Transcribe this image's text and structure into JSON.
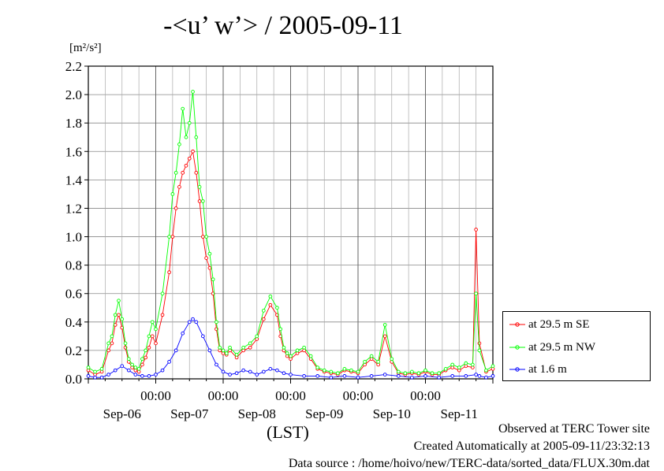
{
  "title": "-<u’ w’> / 2005-09-11",
  "ylabel_unit": "[m²/s²]",
  "xlabel": "(LST)",
  "footer": {
    "observed": "Observed at TERC Tower site",
    "created": "Created Automatically at 2005-09-11/23:32:13",
    "source": "Data source : /home/hoivo/new/TERC-data/sorted_data/FLUX.30m.dat"
  },
  "chart_data": {
    "type": "line",
    "title": "-<u’ w’> / 2005-09-11",
    "xlabel": "(LST)",
    "ylabel": "[m²/s²]",
    "xlim_days": [
      0,
      6
    ],
    "ylim": [
      0,
      2.2
    ],
    "yticks": [
      "0.0",
      "0.2",
      "0.4",
      "0.6",
      "0.8",
      "1.0",
      "1.2",
      "1.4",
      "1.6",
      "1.8",
      "2.0",
      "2.2"
    ],
    "xtick_time_labels": [
      "00:00",
      "00:00",
      "00:00",
      "00:00",
      "00:00"
    ],
    "xtick_day_labels": [
      "Sep-06",
      "Sep-07",
      "Sep-08",
      "Sep-09",
      "Sep-10",
      "Sep-11"
    ],
    "grid": true,
    "legend_position": "right",
    "series": [
      {
        "name": "at 29.5 m SE",
        "color": "#ff0000",
        "x": [
          0.0,
          0.1,
          0.2,
          0.3,
          0.35,
          0.4,
          0.45,
          0.5,
          0.55,
          0.6,
          0.65,
          0.7,
          0.75,
          0.8,
          0.85,
          0.9,
          0.95,
          1.0,
          1.1,
          1.2,
          1.25,
          1.3,
          1.35,
          1.4,
          1.45,
          1.5,
          1.55,
          1.6,
          1.65,
          1.7,
          1.75,
          1.8,
          1.85,
          1.9,
          1.95,
          2.0,
          2.05,
          2.1,
          2.2,
          2.3,
          2.4,
          2.5,
          2.6,
          2.7,
          2.8,
          2.85,
          2.9,
          2.95,
          3.0,
          3.1,
          3.2,
          3.3,
          3.4,
          3.5,
          3.6,
          3.7,
          3.8,
          3.9,
          4.0,
          4.1,
          4.2,
          4.3,
          4.4,
          4.5,
          4.6,
          4.7,
          4.8,
          4.9,
          5.0,
          5.1,
          5.2,
          5.3,
          5.4,
          5.5,
          5.6,
          5.7,
          5.75,
          5.8,
          5.9,
          6.0
        ],
        "values": [
          0.06,
          0.03,
          0.05,
          0.2,
          0.25,
          0.38,
          0.45,
          0.36,
          0.22,
          0.12,
          0.08,
          0.06,
          0.05,
          0.1,
          0.15,
          0.22,
          0.3,
          0.25,
          0.45,
          0.75,
          1.0,
          1.2,
          1.35,
          1.45,
          1.5,
          1.55,
          1.6,
          1.45,
          1.25,
          1.0,
          0.85,
          0.78,
          0.6,
          0.35,
          0.2,
          0.18,
          0.17,
          0.2,
          0.15,
          0.2,
          0.22,
          0.28,
          0.42,
          0.52,
          0.45,
          0.3,
          0.2,
          0.16,
          0.14,
          0.18,
          0.2,
          0.14,
          0.07,
          0.05,
          0.04,
          0.03,
          0.06,
          0.05,
          0.04,
          0.1,
          0.14,
          0.1,
          0.3,
          0.12,
          0.04,
          0.03,
          0.04,
          0.03,
          0.05,
          0.03,
          0.03,
          0.06,
          0.08,
          0.06,
          0.09,
          0.08,
          1.05,
          0.25,
          0.05,
          0.07
        ]
      },
      {
        "name": "at 29.5 m NW",
        "color": "#00ff00",
        "x": [
          0.0,
          0.1,
          0.2,
          0.3,
          0.35,
          0.4,
          0.45,
          0.5,
          0.55,
          0.6,
          0.65,
          0.7,
          0.75,
          0.8,
          0.85,
          0.9,
          0.95,
          1.0,
          1.1,
          1.2,
          1.25,
          1.3,
          1.35,
          1.4,
          1.45,
          1.5,
          1.55,
          1.6,
          1.65,
          1.7,
          1.75,
          1.8,
          1.85,
          1.9,
          1.95,
          2.0,
          2.05,
          2.1,
          2.2,
          2.3,
          2.4,
          2.5,
          2.6,
          2.7,
          2.8,
          2.85,
          2.9,
          2.95,
          3.0,
          3.1,
          3.2,
          3.3,
          3.4,
          3.5,
          3.6,
          3.7,
          3.8,
          3.9,
          4.0,
          4.1,
          4.2,
          4.3,
          4.4,
          4.5,
          4.6,
          4.7,
          4.8,
          4.9,
          5.0,
          5.1,
          5.2,
          5.3,
          5.4,
          5.5,
          5.6,
          5.7,
          5.75,
          5.8,
          5.9,
          6.0
        ],
        "values": [
          0.08,
          0.05,
          0.07,
          0.25,
          0.3,
          0.45,
          0.55,
          0.42,
          0.25,
          0.14,
          0.1,
          0.08,
          0.07,
          0.14,
          0.2,
          0.3,
          0.4,
          0.35,
          0.6,
          1.0,
          1.3,
          1.45,
          1.65,
          1.9,
          1.7,
          1.8,
          2.02,
          1.7,
          1.35,
          1.25,
          1.0,
          0.88,
          0.7,
          0.4,
          0.22,
          0.2,
          0.18,
          0.22,
          0.17,
          0.22,
          0.25,
          0.3,
          0.48,
          0.58,
          0.5,
          0.35,
          0.22,
          0.18,
          0.16,
          0.2,
          0.22,
          0.16,
          0.08,
          0.06,
          0.05,
          0.04,
          0.07,
          0.06,
          0.05,
          0.12,
          0.16,
          0.12,
          0.38,
          0.14,
          0.05,
          0.04,
          0.05,
          0.04,
          0.06,
          0.04,
          0.04,
          0.07,
          0.1,
          0.08,
          0.11,
          0.1,
          0.6,
          0.2,
          0.06,
          0.09
        ]
      },
      {
        "name": "at 1.6 m",
        "color": "#0000ff",
        "x": [
          0.0,
          0.1,
          0.2,
          0.3,
          0.4,
          0.5,
          0.6,
          0.7,
          0.8,
          0.9,
          1.0,
          1.1,
          1.2,
          1.3,
          1.4,
          1.5,
          1.55,
          1.6,
          1.7,
          1.8,
          1.9,
          2.0,
          2.1,
          2.2,
          2.3,
          2.4,
          2.5,
          2.6,
          2.7,
          2.8,
          2.9,
          3.0,
          3.2,
          3.4,
          3.6,
          3.8,
          4.0,
          4.2,
          4.4,
          4.6,
          4.8,
          5.0,
          5.2,
          5.4,
          5.6,
          5.75,
          5.8,
          5.9,
          6.0
        ],
        "values": [
          0.02,
          0.01,
          0.01,
          0.03,
          0.06,
          0.09,
          0.06,
          0.03,
          0.02,
          0.02,
          0.03,
          0.06,
          0.12,
          0.2,
          0.32,
          0.4,
          0.42,
          0.4,
          0.3,
          0.2,
          0.1,
          0.05,
          0.03,
          0.04,
          0.06,
          0.05,
          0.03,
          0.05,
          0.07,
          0.06,
          0.04,
          0.03,
          0.02,
          0.02,
          0.01,
          0.02,
          0.01,
          0.02,
          0.03,
          0.02,
          0.01,
          0.02,
          0.01,
          0.02,
          0.02,
          0.03,
          0.02,
          0.01,
          0.02
        ]
      }
    ]
  }
}
